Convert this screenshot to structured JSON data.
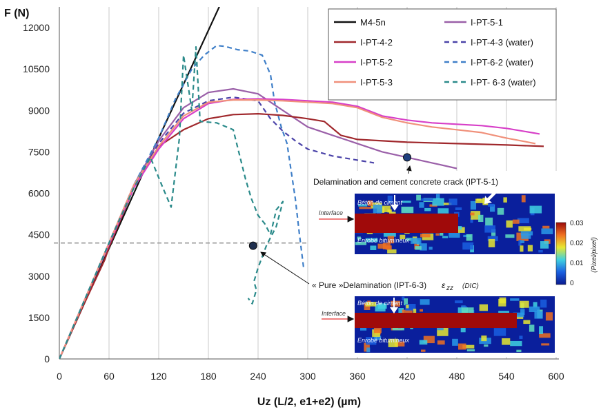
{
  "chart_data": {
    "type": "line",
    "ylabel": "F (N)",
    "xlabel": "Uz (L/2, e1+e2) (µm)",
    "xlim": [
      0,
      600
    ],
    "ylim": [
      0,
      12750
    ],
    "xticks": [
      0,
      60,
      120,
      180,
      240,
      300,
      360,
      420,
      480,
      540,
      600
    ],
    "yticks": [
      0,
      1500,
      3000,
      4500,
      6000,
      7500,
      9000,
      10500,
      12000
    ],
    "grid": "vertical",
    "legend_position": "top-right",
    "series": [
      {
        "name": "M4-5n",
        "color": "#111111",
        "dash": "solid",
        "x": [
          0,
          60,
          120,
          160,
          200,
          232
        ],
        "y": [
          0,
          4000,
          8000,
          10600,
          13200,
          15300
        ]
      },
      {
        "name": "I-PT-5-1",
        "color": "#9a5fa8",
        "dash": "solid",
        "x": [
          0,
          30,
          60,
          90,
          120,
          150,
          180,
          210,
          240,
          270,
          300,
          330,
          360,
          390,
          420,
          450,
          480
        ],
        "y": [
          0,
          2100,
          4200,
          6300,
          7900,
          9100,
          9650,
          9780,
          9600,
          9000,
          8400,
          8100,
          7800,
          7500,
          7300,
          7100,
          6900
        ]
      },
      {
        "name": "I-PT-4-2",
        "color": "#a0282c",
        "dash": "solid",
        "x": [
          0,
          30,
          55,
          60,
          90,
          120,
          150,
          180,
          210,
          240,
          270,
          300,
          320,
          340,
          360,
          420,
          480,
          540,
          585
        ],
        "y": [
          0,
          2000,
          3600,
          4050,
          6200,
          7700,
          8300,
          8700,
          8850,
          8880,
          8820,
          8700,
          8600,
          8100,
          7950,
          7850,
          7800,
          7750,
          7700
        ]
      },
      {
        "name": "I-PT-4-3 (water)",
        "color": "#4a42a8",
        "dash": "dashed",
        "x": [
          0,
          30,
          60,
          90,
          120,
          150,
          180,
          210,
          240,
          255,
          270,
          285,
          300,
          330,
          360,
          380
        ],
        "y": [
          0,
          2100,
          4200,
          6300,
          7800,
          8900,
          9350,
          9480,
          9350,
          8700,
          8250,
          7900,
          7600,
          7350,
          7200,
          7100
        ]
      },
      {
        "name": "I-PT-5-2",
        "color": "#d73fc8",
        "dash": "solid",
        "x": [
          0,
          30,
          60,
          90,
          120,
          150,
          180,
          210,
          240,
          270,
          300,
          330,
          360,
          390,
          420,
          450,
          480,
          510,
          540,
          580
        ],
        "y": [
          0,
          2100,
          4150,
          6200,
          7600,
          8700,
          9250,
          9400,
          9420,
          9400,
          9350,
          9300,
          9150,
          8800,
          8650,
          8550,
          8500,
          8450,
          8350,
          8150
        ]
      },
      {
        "name": "I-PT-6-2 (water)",
        "color": "#3f7fc8",
        "dash": "dashed",
        "x": [
          0,
          30,
          60,
          90,
          120,
          140,
          160,
          175,
          190,
          200,
          215,
          230,
          245,
          255,
          260,
          268,
          275,
          280,
          285,
          290,
          295
        ],
        "y": [
          0,
          2100,
          4200,
          6300,
          8000,
          9400,
          10500,
          11000,
          11350,
          11320,
          11200,
          11150,
          11000,
          10300,
          9300,
          8400,
          7800,
          6800,
          5800,
          4500,
          3300
        ]
      },
      {
        "name": "I-PT-5-3",
        "color": "#f0907a",
        "dash": "solid",
        "x": [
          0,
          30,
          60,
          90,
          120,
          150,
          180,
          210,
          240,
          270,
          300,
          330,
          360,
          390,
          420,
          450,
          480,
          510,
          540,
          575
        ],
        "y": [
          0,
          2100,
          4200,
          6300,
          7700,
          8800,
          9300,
          9380,
          9380,
          9350,
          9300,
          9250,
          9100,
          8750,
          8550,
          8400,
          8300,
          8200,
          8000,
          7800
        ]
      },
      {
        "name": "I-PT- 6-3 (water)",
        "color": "#2a8a8a",
        "dash": "dashed",
        "x": [
          0,
          30,
          60,
          90,
          110,
          125,
          135,
          145,
          150,
          155,
          160,
          165,
          170,
          190,
          210,
          225,
          232,
          240,
          248,
          255,
          262,
          270,
          262,
          250,
          240,
          235,
          238,
          233,
          228
        ],
        "y": [
          0,
          2100,
          4200,
          6200,
          7300,
          6200,
          5500,
          8000,
          11000,
          10000,
          9000,
          11300,
          8600,
          8550,
          8300,
          6500,
          5800,
          5200,
          4900,
          4500,
          5400,
          5700,
          4800,
          4100,
          3300,
          2800,
          2500,
          2000,
          2200
        ]
      }
    ],
    "markers": [
      {
        "x": 420,
        "y": 7300,
        "color": "#1f3f7f"
      },
      {
        "x": 234,
        "y": 4100,
        "color": "#1f2f4f"
      }
    ],
    "reference_line": {
      "y": 4200,
      "x_end": 300,
      "color": "#9a9a9a"
    },
    "annotations": [
      "Delamination and cement concrete crack (IPT-5-1)",
      "« Pure »Delamination (IPT-6-3)",
      "ε",
      "zz",
      "(DIC)"
    ],
    "inset": {
      "label_top": "Béton de ciment",
      "label_interface": "Interface",
      "label_bottom": "Enrobé bitumineux",
      "colorbar_ticks": [
        "0.03",
        "0.02",
        "0.01",
        "0"
      ],
      "colorbar_title": "(Pixel/pixel)"
    }
  }
}
